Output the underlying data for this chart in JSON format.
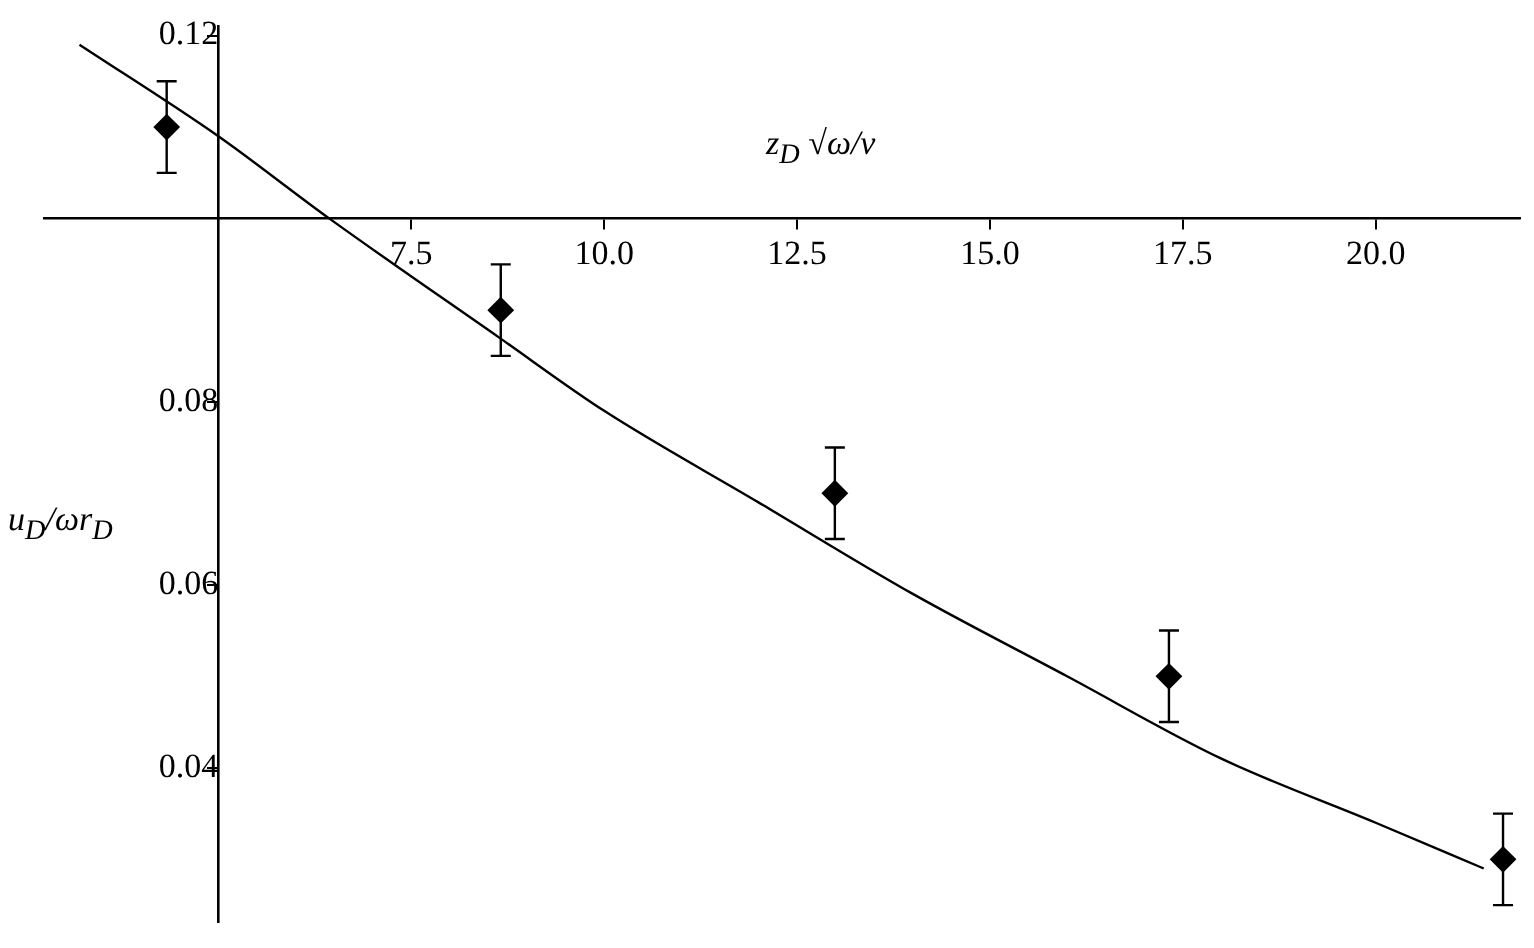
{
  "chart_data": {
    "type": "scatter",
    "xlabel": "z$_{D}$ √ω/ν",
    "ylabel": "u$_{D}$/ωr$_{D}$",
    "series": [
      {
        "color": "#000000",
        "marker": "diamond",
        "x": [
          4.33,
          8.66,
          12.99,
          17.32,
          21.65
        ],
        "values": [
          0.11,
          0.09,
          0.07,
          0.05,
          0.03
        ],
        "errors": [
          0.005,
          0.005,
          0.005,
          0.005,
          0.005
        ]
      },
      {
        "type": "line",
        "color": "#000000",
        "marker": "none",
        "line_style": "solid",
        "x": [
          3.2,
          5,
          6.44,
          8.64,
          10,
          12,
          14,
          16,
          18,
          20,
          21.4
        ],
        "values": [
          0.119,
          0.109,
          0.1,
          0.087,
          0.079,
          0.069,
          0.059,
          0.05,
          0.041,
          0.034,
          0.029
        ]
      }
    ],
    "xlim": [
      2.74,
      21.87
    ],
    "ylim": [
      0.0232,
      0.121
    ],
    "xticks": [
      7.5,
      {
        "value": 10,
        "label": "10.0"
      },
      12.5,
      {
        "value": 15,
        "label": "15.0"
      },
      17.5,
      {
        "value": 20,
        "label": "20.0"
      }
    ],
    "yticks": [
      0.04,
      0.06,
      0.08,
      0.12
    ]
  }
}
